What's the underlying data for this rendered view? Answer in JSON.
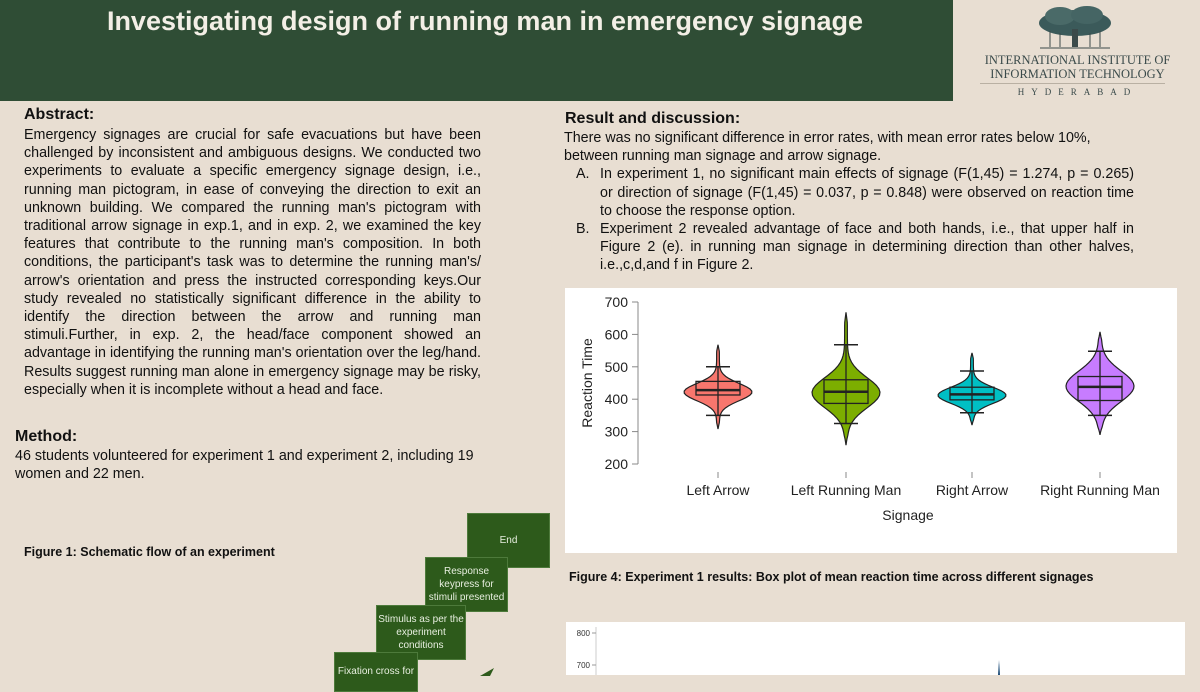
{
  "header": {
    "title": "Investigating design of running man in emergency signage"
  },
  "logo": {
    "line1": "INTERNATIONAL INSTITUTE OF",
    "line2": "INFORMATION TECHNOLOGY",
    "line3": "HYDERABAD"
  },
  "abstract": {
    "heading": "Abstract:",
    "body": "Emergency signages are crucial for safe evacuations but have been challenged by inconsistent and ambiguous designs. We conducted two experiments to evaluate a specific emergency signage design, i.e., running man pictogram, in ease of conveying the direction to exit an unknown building. We compared the running man's pictogram with traditional arrow signage in exp.1, and in exp. 2, we examined the key features that contribute to the running man's composition. In both conditions, the participant's task was to determine the running man's/ arrow's orientation and press the instructed corresponding keys.Our study revealed no statistically significant difference in the ability to identify the direction between the arrow and running man stimuli.Further, in exp. 2, the head/face component showed an advantage in identifying the running man's orientation over the leg/hand. Results suggest running man alone in emergency signage may be risky, especially when it is incomplete without a head and face."
  },
  "method": {
    "heading": "Method:",
    "body": "46 students volunteered for experiment 1 and experiment 2, including 19 women and 22 men."
  },
  "figure1": {
    "caption": "Figure 1: Schematic flow of an experiment",
    "steps": [
      "End",
      "Response keypress for stimuli presented",
      "Stimulus as per the experiment conditions",
      "Fixation cross for"
    ]
  },
  "results": {
    "heading": "Result and discussion:",
    "intro": "There was no significant difference in error rates, with mean error rates below 10%, between running man signage and arrow signage.",
    "items": [
      {
        "marker": "A.",
        "text": "In experiment 1, no significant main effects of signage (F(1,45) = 1.274, p = 0.265) or direction of signage (F(1,45) = 0.037, p = 0.848) were observed on reaction time to choose the response option."
      },
      {
        "marker": "B.",
        "text": "Experiment 2 revealed advantage of face and both hands, i.e., that upper half in Figure 2 (e). in running man signage in determining direction than other halves, i.e.,c,d,and f in Figure 2."
      }
    ]
  },
  "figure4": {
    "caption": "Figure 4: Experiment 1 results: Box plot of mean reaction time across different signages"
  },
  "chart_data": [
    {
      "type": "violin",
      "xlabel": "Signage",
      "ylabel": "Reaction Time",
      "ylim": [
        200,
        700
      ],
      "yticks": [
        200,
        300,
        400,
        500,
        600,
        700
      ],
      "categories": [
        "Left Arrow",
        "Left Running Man",
        "Right Arrow",
        "Right Running Man"
      ],
      "colors": [
        "#f8766d",
        "#7cae00",
        "#00bfc4",
        "#c77cff"
      ],
      "series": [
        {
          "min": 308,
          "whisker_low": 350,
          "q1": 413,
          "median": 428,
          "q3": 455,
          "whisker_high": 500,
          "max": 568,
          "mode": 422
        },
        {
          "min": 258,
          "whisker_low": 325,
          "q1": 387,
          "median": 423,
          "q3": 460,
          "whisker_high": 568,
          "max": 668,
          "mode": 420
        },
        {
          "min": 320,
          "whisker_low": 358,
          "q1": 398,
          "median": 415,
          "q3": 437,
          "whisker_high": 487,
          "max": 543,
          "mode": 412
        },
        {
          "min": 290,
          "whisker_low": 350,
          "q1": 396,
          "median": 438,
          "q3": 470,
          "whisker_high": 548,
          "max": 608,
          "mode": 440
        }
      ]
    },
    {
      "type": "violin",
      "yticks": [
        700,
        800
      ],
      "partial": true
    }
  ]
}
